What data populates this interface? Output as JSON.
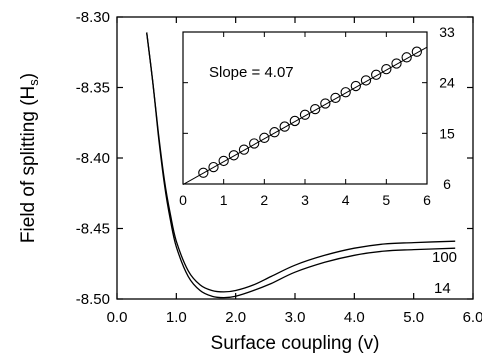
{
  "chart_data": [
    {
      "type": "line",
      "title": "",
      "xlabel": "Surface coupling (v)",
      "ylabel_main": "Field of splitting (H",
      "ylabel_sub": "s",
      "ylabel_close": ")",
      "xlim": [
        0.0,
        6.0
      ],
      "ylim": [
        -8.5,
        -8.3
      ],
      "xticks": [
        0.0,
        1.0,
        2.0,
        3.0,
        4.0,
        5.0,
        6.0
      ],
      "xtick_labels": [
        "0.0",
        "1.0",
        "2.0",
        "3.0",
        "4.0",
        "5.0",
        "6.0"
      ],
      "yticks": [
        -8.3,
        -8.35,
        -8.4,
        -8.45,
        -8.5
      ],
      "ytick_labels": [
        "-8.30",
        "-8.35",
        "-8.40",
        "-8.45",
        "-8.50"
      ],
      "series": [
        {
          "name": "100",
          "x": [
            0.5,
            0.6,
            0.7,
            0.8,
            0.9,
            1.0,
            1.2,
            1.4,
            1.6,
            1.8,
            2.0,
            2.3,
            2.6,
            3.0,
            3.5,
            4.0,
            4.5,
            5.0,
            5.7
          ],
          "y": [
            -8.311,
            -8.345,
            -8.383,
            -8.416,
            -8.44,
            -8.459,
            -8.48,
            -8.49,
            -8.494,
            -8.495,
            -8.494,
            -8.49,
            -8.484,
            -8.476,
            -8.469,
            -8.464,
            -8.461,
            -8.46,
            -8.459
          ]
        },
        {
          "name": "14",
          "x": [
            0.5,
            0.6,
            0.7,
            0.8,
            0.9,
            1.0,
            1.2,
            1.4,
            1.6,
            1.8,
            2.0,
            2.3,
            2.6,
            3.0,
            3.5,
            4.0,
            4.5,
            5.0,
            5.7
          ],
          "y": [
            -8.311,
            -8.345,
            -8.385,
            -8.419,
            -8.444,
            -8.463,
            -8.484,
            -8.494,
            -8.498,
            -8.499,
            -8.498,
            -8.494,
            -8.489,
            -8.481,
            -8.474,
            -8.469,
            -8.466,
            -8.465,
            -8.464
          ]
        }
      ]
    },
    {
      "type": "scatter",
      "title": "",
      "annotation": "Slope = 4.07",
      "xlim": [
        0,
        6
      ],
      "ylim": [
        6,
        33
      ],
      "xticks": [
        0,
        1,
        2,
        3,
        4,
        5,
        6
      ],
      "xtick_labels": [
        "0",
        "1",
        "2",
        "3",
        "4",
        "5",
        "6"
      ],
      "yticks": [
        6,
        15,
        24,
        33
      ],
      "ytick_labels": [
        "6",
        "15",
        "24",
        "33"
      ],
      "points_x": [
        0.5,
        0.75,
        1.0,
        1.25,
        1.5,
        1.75,
        2.0,
        2.25,
        2.5,
        2.75,
        3.0,
        3.25,
        3.5,
        3.75,
        4.0,
        4.25,
        4.5,
        4.75,
        5.0,
        5.25,
        5.5,
        5.75
      ],
      "points_y": [
        8.0,
        9.0,
        10.1,
        11.1,
        12.1,
        13.2,
        14.2,
        15.2,
        16.2,
        17.2,
        18.3,
        19.3,
        20.3,
        21.3,
        22.3,
        23.4,
        24.4,
        25.4,
        26.4,
        27.4,
        28.5,
        29.5
      ],
      "fit_line": {
        "slope": 4.07,
        "x": [
          0,
          6
        ],
        "y": [
          5.9,
          30.3
        ]
      }
    }
  ]
}
